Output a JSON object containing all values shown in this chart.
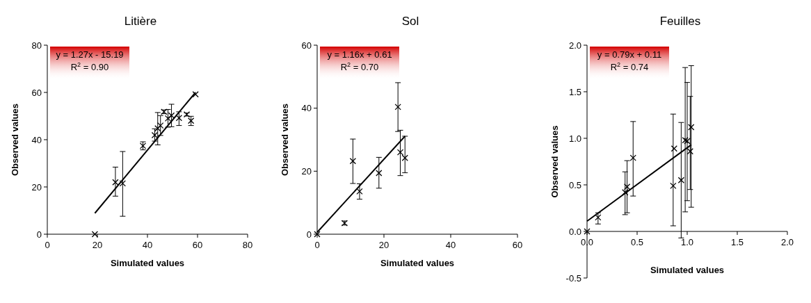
{
  "chart_data": [
    {
      "type": "scatter",
      "title": "Litière",
      "xlabel": "Simulated values",
      "ylabel": "Observed values",
      "xlim": [
        0,
        80
      ],
      "ylim": [
        0,
        80
      ],
      "xticks": [
        0,
        20,
        40,
        60,
        80
      ],
      "yticks": [
        0,
        20,
        40,
        60,
        80
      ],
      "marker": "cross",
      "annotations": [
        "y = 1.27x - 15.19",
        "R$^{2}$ = 0.90"
      ],
      "series": [
        {
          "color": "#000000",
          "x": [
            19,
            27.2,
            30.1,
            38.2,
            42.9,
            44.1,
            45.2,
            46.6,
            48.2,
            49.6,
            52.6,
            55.7,
            57.4,
            59.2
          ],
          "values": [
            0,
            22,
            21.5,
            37.4,
            41.9,
            44.8,
            46,
            51.8,
            49,
            50.2,
            49.2,
            50.7,
            48,
            59.2
          ],
          "errors": [
            null,
            [
              16.1,
              28.4
            ],
            [
              7.6,
              35
            ],
            [
              35.7,
              39.1
            ],
            [
              39.4,
              44.6
            ],
            [
              37.8,
              51.5
            ],
            [
              41.8,
              50.2
            ],
            [
              51,
              52.6
            ],
            [
              45.3,
              52.8
            ],
            [
              45.5,
              55
            ],
            [
              46,
              51.8
            ],
            [
              50,
              51.3
            ],
            [
              46,
              49.9
            ],
            null
          ]
        },
        {
          "type": "line",
          "color": "#000000",
          "marker": "none",
          "x": [
            19,
            59.2
          ],
          "values": [
            8.9,
            60
          ]
        }
      ]
    },
    {
      "type": "scatter",
      "title": "Sol",
      "xlabel": "Simulated values",
      "ylabel": "Observed values",
      "xlim": [
        0,
        60
      ],
      "ylim": [
        0,
        60
      ],
      "xticks": [
        0,
        20,
        40,
        60
      ],
      "yticks": [
        0,
        20,
        40,
        60
      ],
      "marker": "cross",
      "annotations": [
        "y = 1.16x + 0.61",
        "R$^{2}$ = 0.70"
      ],
      "series": [
        {
          "color": "#000000",
          "x": [
            0,
            8.2,
            10.7,
            12.7,
            18.5,
            24.2,
            24.9,
            26.3
          ],
          "values": [
            0,
            3.5,
            23.2,
            13.6,
            19.4,
            40.4,
            26,
            24.2
          ],
          "errors": [
            null,
            [
              2.9,
              4.2
            ],
            [
              16.1,
              30.2
            ],
            [
              11.1,
              16
            ],
            [
              14.6,
              24.4
            ],
            [
              32.6,
              48.1
            ],
            [
              18.6,
              33
            ],
            [
              19.5,
              31.1
            ]
          ]
        },
        {
          "type": "line",
          "color": "#000000",
          "marker": "none",
          "x": [
            0,
            26.3
          ],
          "values": [
            0.6,
            31.1
          ]
        }
      ]
    },
    {
      "type": "scatter",
      "title": "Feuilles",
      "xlabel": "Simulated values",
      "ylabel": "Observed values",
      "xlim": [
        0,
        2
      ],
      "ylim": [
        -0.5,
        2
      ],
      "xticks": [
        {
          "value": 0,
          "label": "0.0"
        },
        {
          "value": 0.5,
          "label": "0.5"
        },
        {
          "value": 1,
          "label": "1.0"
        },
        {
          "value": 1.5,
          "label": "1.5"
        },
        {
          "value": 2,
          "label": "2.0"
        }
      ],
      "yticks": [
        {
          "value": -0.5,
          "label": "-0.5"
        },
        {
          "value": 0,
          "label": "0.0"
        },
        {
          "value": 0.5,
          "label": "0.5"
        },
        {
          "value": 1,
          "label": "1.0"
        },
        {
          "value": 1.5,
          "label": "1.5"
        },
        {
          "value": 2,
          "label": "2.0"
        }
      ],
      "marker": "cross",
      "annotations": [
        "y = 0.79x + 0.11",
        "R$^{2}$ = 0.74"
      ],
      "series": [
        {
          "color": "#000000",
          "x": [
            0,
            0.11,
            0.38,
            0.4,
            0.46,
            0.86,
            0.87,
            0.94,
            0.98,
            1.0,
            1.04,
            1.03
          ],
          "values": [
            0,
            0.15,
            0.42,
            0.48,
            0.79,
            0.49,
            0.89,
            0.55,
            0.98,
            0.97,
            1.12,
            0.86
          ],
          "errors": [
            null,
            [
              0.08,
              0.2
            ],
            [
              0.18,
              0.64
            ],
            [
              0.2,
              0.76
            ],
            [
              0.38,
              1.18
            ],
            [
              0.06,
              1.26
            ],
            null,
            [
              -0.07,
              1.17
            ],
            [
              0.21,
              1.76
            ],
            [
              0.33,
              1.6
            ],
            [
              0.26,
              1.78
            ],
            [
              0.45,
              1.45
            ]
          ]
        },
        {
          "type": "line",
          "color": "#000000",
          "marker": "none",
          "x": [
            0,
            1.04
          ],
          "values": [
            0.11,
            0.93
          ]
        }
      ]
    }
  ]
}
